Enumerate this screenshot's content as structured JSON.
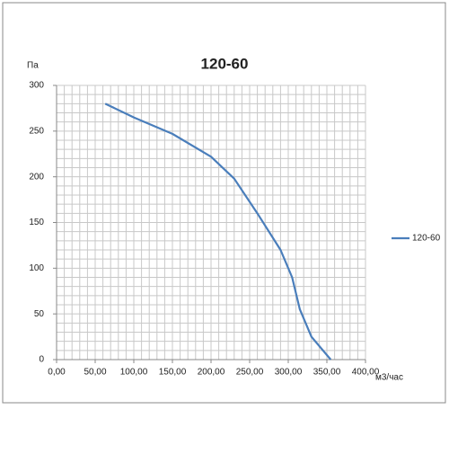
{
  "chart_data": {
    "type": "line",
    "title": "120-60",
    "y_label": "Па",
    "x_label": "м3/час",
    "x": [
      63,
      100,
      150,
      200,
      230,
      260,
      290,
      305,
      315,
      330,
      355
    ],
    "series": [
      {
        "name": "120-60",
        "color": "#4a7ebb",
        "values": [
          280,
          265,
          247,
          222,
          198,
          160,
          120,
          90,
          55,
          25,
          0
        ]
      }
    ],
    "xlim": [
      0,
      400
    ],
    "xticks": [
      {
        "value": 0,
        "label": "0,00"
      },
      {
        "value": 50,
        "label": "50,00"
      },
      {
        "value": 100,
        "label": "100,00"
      },
      {
        "value": 150,
        "label": "150,00"
      },
      {
        "value": 200,
        "label": "200,00"
      },
      {
        "value": 250,
        "label": "250,00"
      },
      {
        "value": 300,
        "label": "300,00"
      },
      {
        "value": 350,
        "label": "350,00"
      },
      {
        "value": 400,
        "label": "400,00"
      }
    ],
    "ylim": [
      0,
      300
    ],
    "yticks": [
      0,
      50,
      100,
      150,
      200,
      250,
      300
    ],
    "grid": true,
    "legend": "right"
  }
}
